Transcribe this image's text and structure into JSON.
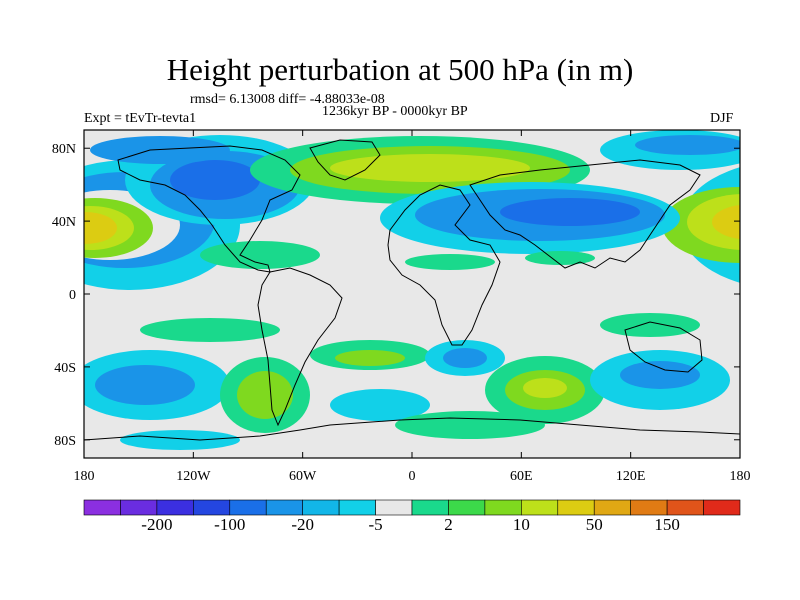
{
  "title": "Height perturbation at 500 hPa (in m)",
  "stats": "rmsd= 6.13008 diff= -4.88033e-08",
  "experiment": "Expt = tEvTr-tevta1",
  "period": "1236kyr BP - 0000kyr BP",
  "season": "DJF",
  "map": {
    "projection": "cylindrical-equidistant",
    "lon_range": [
      -180,
      180
    ],
    "lat_range": [
      -90,
      90
    ],
    "x_ticks": [
      "180",
      "120W",
      "60W",
      "0",
      "60E",
      "120E",
      "180"
    ],
    "y_ticks": [
      "80N",
      "40N",
      "0",
      "40S",
      "80S"
    ],
    "continent_outlines": true,
    "background_color": "#e8e8e8"
  },
  "colorbar": {
    "colors": [
      "#8b2fe0",
      "#6a2de0",
      "#3b2fe0",
      "#2446e0",
      "#1a6fe8",
      "#1a94e8",
      "#12b6e8",
      "#12d0e8",
      "#e8e8e8",
      "#1ad98c",
      "#3cd94a",
      "#7fd91f",
      "#bde01a",
      "#dccc12",
      "#e0a814",
      "#e07b14",
      "#e0541a",
      "#e02a1a"
    ],
    "labels": [
      "-200",
      "-100",
      "-20",
      "-5",
      "2",
      "10",
      "50",
      "150"
    ]
  }
}
